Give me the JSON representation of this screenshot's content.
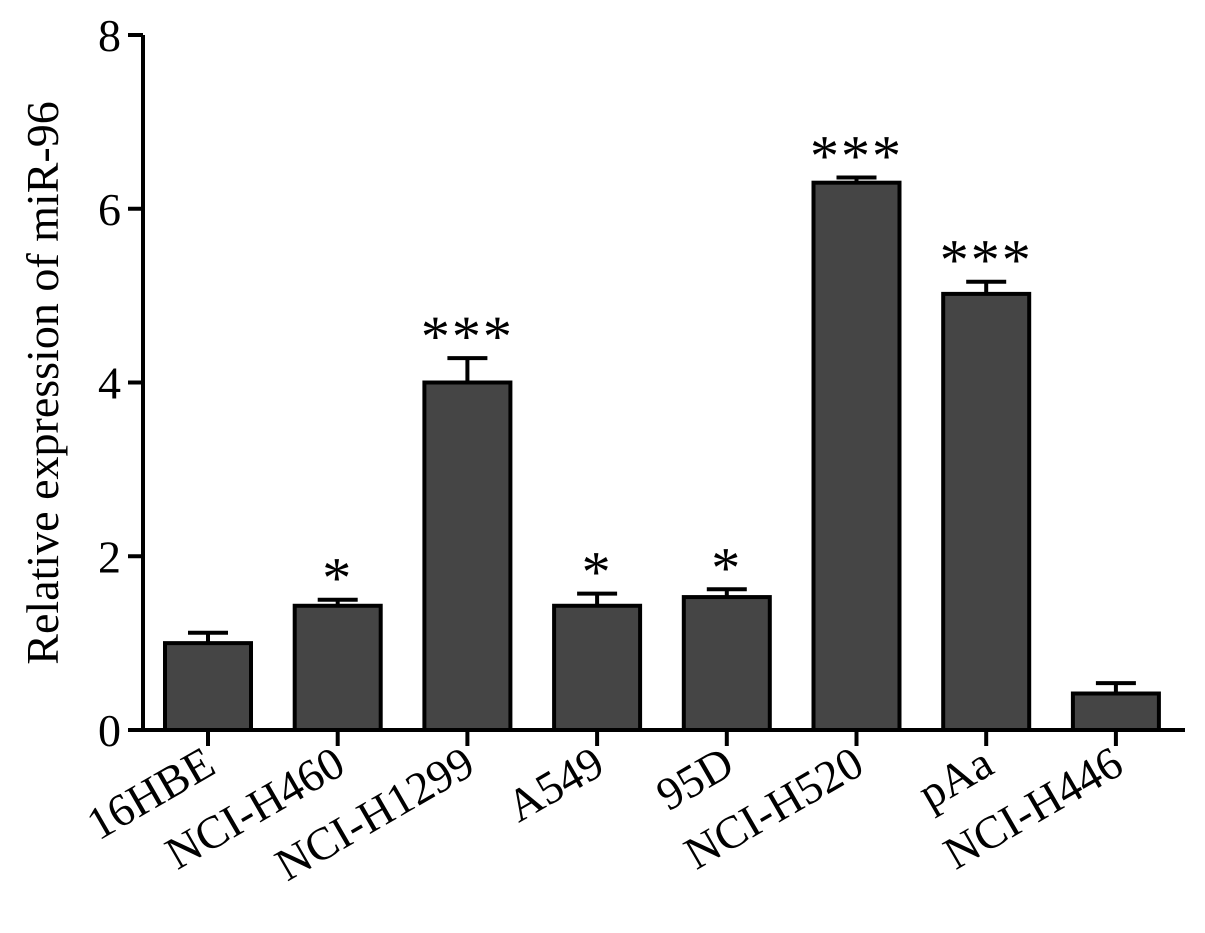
{
  "chart_data": {
    "type": "bar",
    "title": "",
    "xlabel": "",
    "ylabel": "Relative expression of miR-96",
    "ylim": [
      0,
      8
    ],
    "yticks": [
      "0",
      "2",
      "4",
      "6",
      "8"
    ],
    "grid": false,
    "categories": [
      "16HBE",
      "NCI-H460",
      "NCI-H1299",
      "A549",
      "95D",
      "NCI-H520",
      "pAa",
      "NCI-H446"
    ],
    "values": [
      1.0,
      1.43,
      4.0,
      1.43,
      1.53,
      6.3,
      5.02,
      0.42
    ],
    "errors": [
      0.12,
      0.07,
      0.28,
      0.14,
      0.09,
      0.06,
      0.14,
      0.12
    ],
    "significance": [
      "",
      "*",
      "***",
      "*",
      "*",
      "***",
      "***",
      ""
    ],
    "colors": {
      "bar_fill": "#454545",
      "bar_edge": "#000000"
    }
  }
}
